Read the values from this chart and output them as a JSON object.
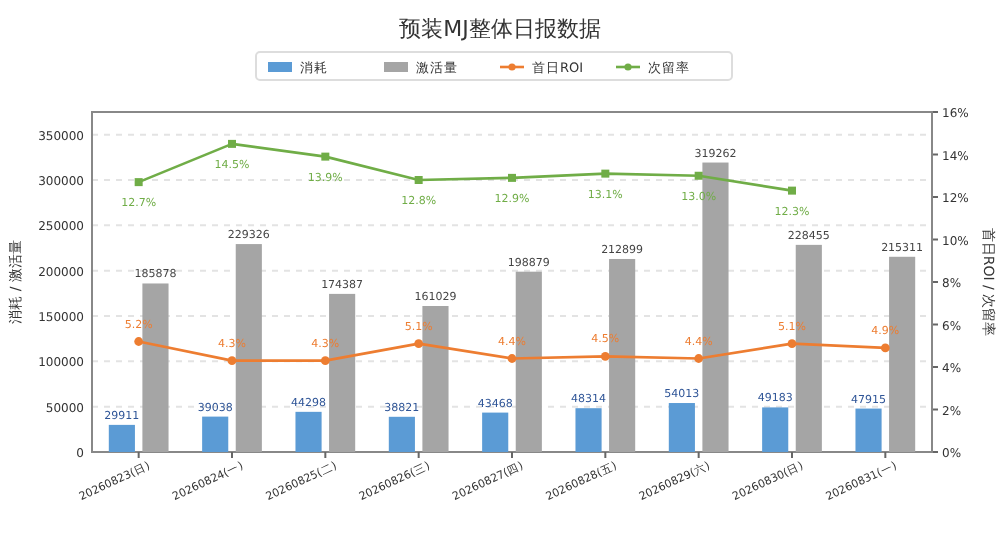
{
  "chart_data": {
    "type": "bar",
    "title": "预装MJ整体日报数据",
    "ylabel": "消耗 / 激活量",
    "y2label": "首日ROI / 次留率",
    "categories": [
      "20260823(日)",
      "20260824(一)",
      "20260825(二)",
      "20260826(三)",
      "20260827(四)",
      "20260828(五)",
      "20260829(六)",
      "20260830(日)",
      "20260831(一)"
    ],
    "series": [
      {
        "name": "消耗",
        "color": "#5b9bd5",
        "values": [
          29911,
          39038,
          44298,
          38821,
          43468,
          48314,
          54013,
          49183,
          47915
        ]
      },
      {
        "name": "激活量",
        "color": "#a5a5a5",
        "values": [
          185878,
          229326,
          174387,
          161029,
          198879,
          212899,
          319262,
          228455,
          215311
        ]
      },
      {
        "name": "首日ROI",
        "type": "line",
        "axis": "y2",
        "color": "#ed7d31",
        "marker": "circle",
        "values": [
          5.2,
          4.3,
          4.3,
          5.1,
          4.4,
          4.5,
          4.4,
          5.1,
          4.9
        ],
        "value_labels": [
          "5.2%",
          "4.3%",
          "4.3%",
          "5.1%",
          "4.4%",
          "4.5%",
          "4.4%",
          "5.1%",
          "4.9%"
        ]
      },
      {
        "name": "次留率",
        "type": "line",
        "axis": "y2",
        "color": "#70ad47",
        "marker": "square",
        "values": [
          12.7,
          14.5,
          13.9,
          12.8,
          12.9,
          13.1,
          13.0,
          12.3,
          null
        ],
        "value_labels": [
          "12.7%",
          "14.5%",
          "13.9%",
          "12.8%",
          "12.9%",
          "13.1%",
          "13.0%",
          "12.3%",
          null
        ]
      }
    ],
    "ylim": [
      0,
      375000
    ],
    "yticks": [
      0,
      50000,
      100000,
      150000,
      200000,
      250000,
      300000,
      350000
    ],
    "y2lim": [
      0,
      16
    ],
    "y2ticks": [
      {
        "value": 0,
        "label": "0%"
      },
      {
        "value": 2,
        "label": "2%"
      },
      {
        "value": 4,
        "label": "4%"
      },
      {
        "value": 6,
        "label": "6%"
      },
      {
        "value": 8,
        "label": "8%"
      },
      {
        "value": 10,
        "label": "10%"
      },
      {
        "value": 12,
        "label": "12%"
      },
      {
        "value": 14,
        "label": "14%"
      },
      {
        "value": 16,
        "label": "16%"
      }
    ],
    "data_labels": true,
    "grid": "y",
    "legend": "top"
  }
}
